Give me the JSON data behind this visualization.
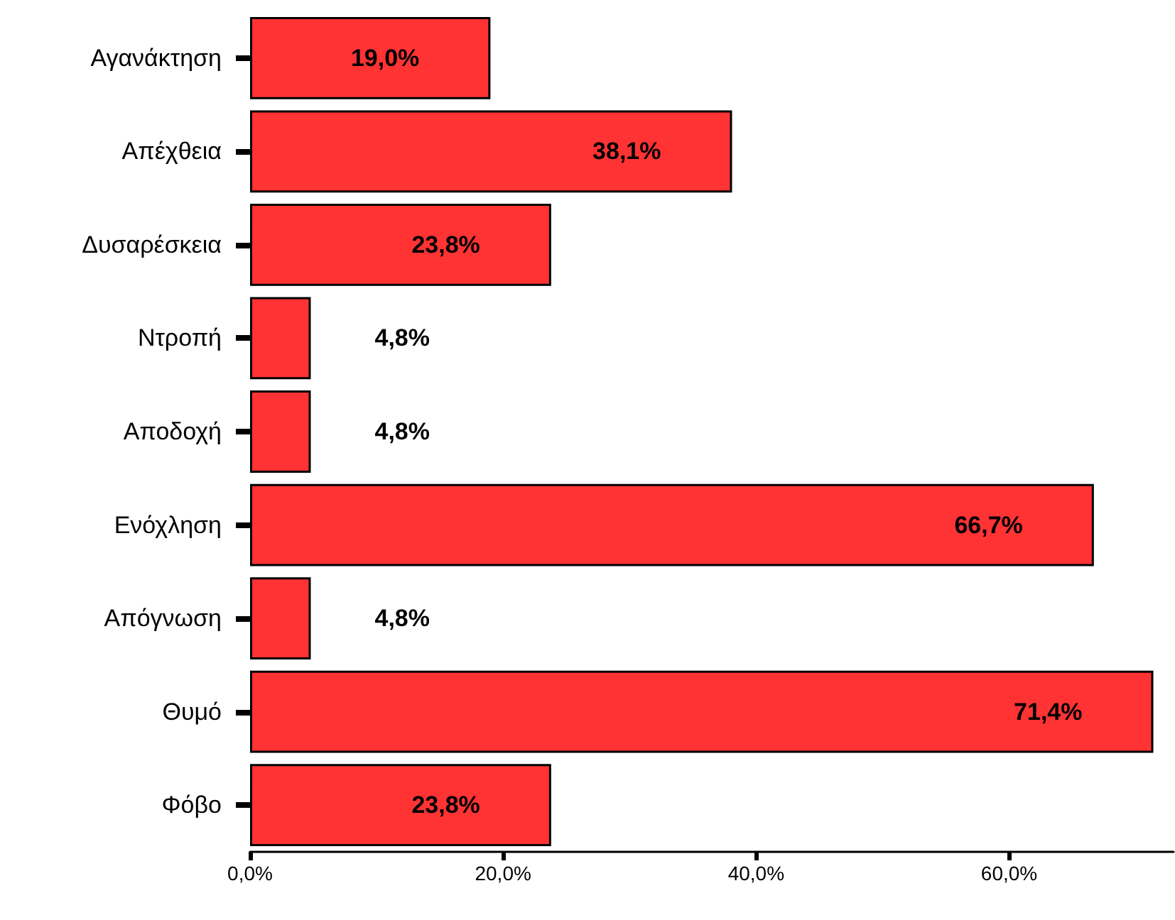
{
  "chart_data": {
    "type": "bar",
    "orientation": "horizontal",
    "categories": [
      "Αγανάκτηση",
      "Απέχθεια",
      "Δυσαρέσκεια",
      "Ντροπή",
      "Αποδοχή",
      "Ενόχληση",
      "Απόγνωση",
      "Θυμό",
      "Φόβο"
    ],
    "values": [
      19.0,
      38.1,
      23.8,
      4.8,
      4.8,
      66.7,
      4.8,
      71.4,
      23.8
    ],
    "value_labels": [
      "19,0%",
      "38,1%",
      "23,8%",
      "4,8%",
      "4,8%",
      "66,7%",
      "4,8%",
      "71,4%",
      "23,8%"
    ],
    "color": "#ff3333",
    "xlim": [
      0,
      73
    ],
    "xticks": [
      {
        "value": 0,
        "label": "0,0%"
      },
      {
        "value": 20,
        "label": "20,0%"
      },
      {
        "value": 40,
        "label": "40,0%"
      },
      {
        "value": 60,
        "label": "60,0%"
      }
    ]
  }
}
